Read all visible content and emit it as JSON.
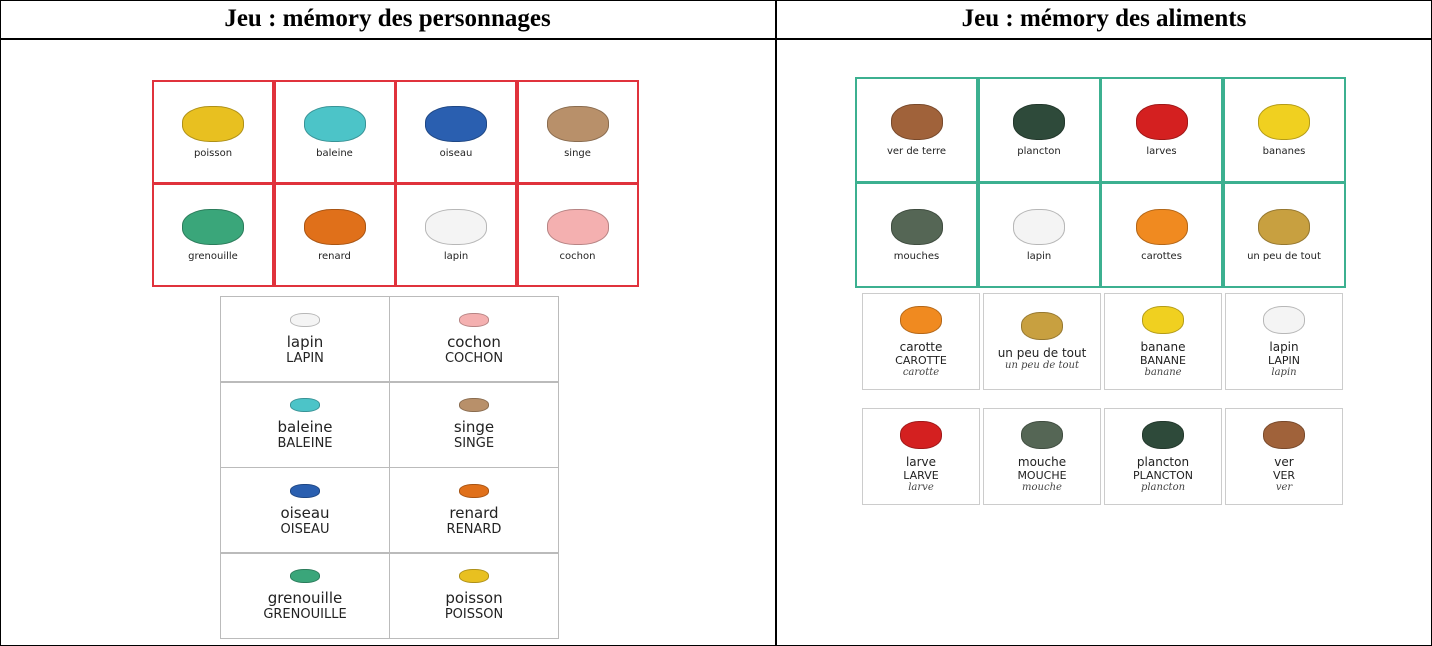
{
  "headers": [
    "Jeu : mémory des personnages",
    "Jeu : mémory des aliments"
  ],
  "left": {
    "grid": [
      "poisson",
      "baleine",
      "oiseau",
      "singe",
      "grenouille",
      "renard",
      "lapin",
      "cochon"
    ],
    "word_cards": [
      [
        "lapin",
        "LAPIN"
      ],
      [
        "cochon",
        "COCHON"
      ],
      [
        "baleine",
        "BALEINE"
      ],
      [
        "singe",
        "SINGE"
      ],
      [
        "oiseau",
        "OISEAU"
      ],
      [
        "renard",
        "RENARD"
      ],
      [
        "grenouille",
        "GRENOUILLE"
      ],
      [
        "poisson",
        "POISSON"
      ]
    ]
  },
  "right": {
    "grid": [
      "ver de terre",
      "plancton",
      "larves",
      "bananes",
      "mouches",
      "lapin",
      "carottes",
      "un peu de tout"
    ],
    "word_cards": [
      [
        "carotte",
        "CAROTTE",
        "carotte"
      ],
      [
        "un peu de tout",
        "un peu de tout"
      ],
      [
        "banane",
        "BANANE",
        "banane"
      ],
      [
        "lapin",
        "LAPIN",
        "lapin"
      ],
      [
        "larve",
        "LARVE",
        "larve"
      ],
      [
        "mouche",
        "MOUCHE",
        "mouche"
      ],
      [
        "plancton",
        "PLANCTON",
        "plancton"
      ],
      [
        "ver",
        "VER",
        "ver"
      ]
    ]
  }
}
